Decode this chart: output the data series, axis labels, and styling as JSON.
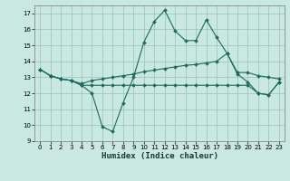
{
  "xlabel": "Humidex (Indice chaleur)",
  "bg_color": "#c8e8e0",
  "grid_color": "#a0c8c0",
  "line_color": "#1a6b60",
  "xlim": [
    -0.5,
    23.5
  ],
  "ylim": [
    9,
    17.5
  ],
  "yticks": [
    9,
    10,
    11,
    12,
    13,
    14,
    15,
    16,
    17
  ],
  "xticks": [
    0,
    1,
    2,
    3,
    4,
    5,
    6,
    7,
    8,
    9,
    10,
    11,
    12,
    13,
    14,
    15,
    16,
    17,
    18,
    19,
    20,
    21,
    22,
    23
  ],
  "line1_x": [
    0,
    1,
    2,
    3,
    4,
    5,
    6,
    7,
    8,
    9,
    10,
    11,
    12,
    13,
    14,
    15,
    16,
    17,
    18,
    19,
    20,
    21,
    22,
    23
  ],
  "line1_y": [
    13.5,
    13.1,
    12.9,
    12.8,
    12.5,
    12.0,
    9.9,
    9.6,
    11.4,
    13.0,
    15.2,
    16.5,
    17.2,
    15.9,
    15.3,
    15.3,
    16.6,
    15.5,
    14.5,
    13.2,
    12.7,
    12.0,
    11.9,
    12.7
  ],
  "line2_x": [
    0,
    1,
    2,
    3,
    4,
    5,
    6,
    7,
    8,
    9,
    10,
    11,
    12,
    13,
    14,
    15,
    16,
    17,
    18,
    19,
    20,
    21,
    22,
    23
  ],
  "line2_y": [
    13.5,
    13.1,
    12.9,
    12.8,
    12.6,
    12.8,
    12.9,
    13.0,
    13.1,
    13.2,
    13.35,
    13.45,
    13.55,
    13.65,
    13.75,
    13.8,
    13.9,
    14.0,
    14.5,
    13.3,
    13.3,
    13.1,
    13.0,
    12.9
  ],
  "line3_x": [
    0,
    1,
    2,
    3,
    4,
    5,
    6,
    7,
    8,
    9,
    10,
    11,
    12,
    13,
    14,
    15,
    16,
    17,
    18,
    19,
    20,
    21,
    22,
    23
  ],
  "line3_y": [
    13.5,
    13.1,
    12.9,
    12.8,
    12.5,
    12.5,
    12.5,
    12.5,
    12.5,
    12.5,
    12.5,
    12.5,
    12.5,
    12.5,
    12.5,
    12.5,
    12.5,
    12.5,
    12.5,
    12.5,
    12.5,
    12.0,
    11.9,
    12.7
  ]
}
